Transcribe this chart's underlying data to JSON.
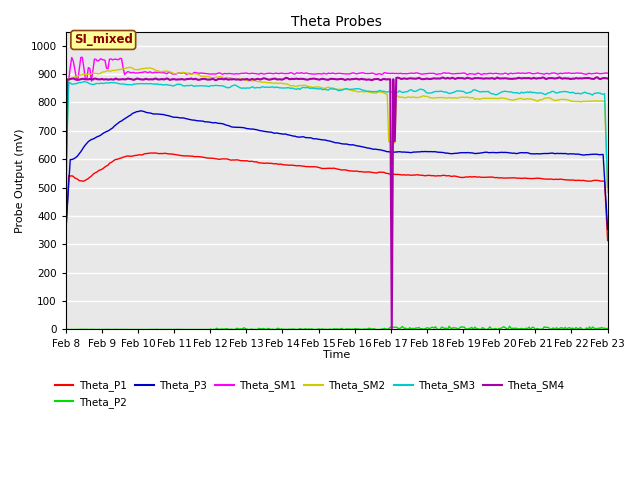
{
  "title": "Theta Probes",
  "xlabel": "Time",
  "ylabel": "Probe Output (mV)",
  "ylim": [
    0,
    1050
  ],
  "background_color": "#e8e8e8",
  "grid_color": "white",
  "annotation_text": "SI_mixed",
  "annotation_color": "#8B0000",
  "annotation_bg": "#ffff99",
  "annotation_border": "#8B4513",
  "x_tick_labels": [
    "Feb 8",
    "Feb 9",
    "Feb 10",
    "Feb 11",
    "Feb 12",
    "Feb 13",
    "Feb 14",
    "Feb 15",
    "Feb 16",
    "Feb 17",
    "Feb 18",
    "Feb 19",
    "Feb 20",
    "Feb 21",
    "Feb 22",
    "Feb 23"
  ],
  "yticks": [
    0,
    100,
    200,
    300,
    400,
    500,
    600,
    700,
    800,
    900,
    1000
  ],
  "legend_entries": [
    {
      "label": "Theta_P1",
      "color": "#ff0000"
    },
    {
      "label": "Theta_P2",
      "color": "#00dd00"
    },
    {
      "label": "Theta_P3",
      "color": "#0000cc"
    },
    {
      "label": "Theta_SM1",
      "color": "#ff00ff"
    },
    {
      "label": "Theta_SM2",
      "color": "#cccc00"
    },
    {
      "label": "Theta_SM3",
      "color": "#00cccc"
    },
    {
      "label": "Theta_SM4",
      "color": "#aa00aa"
    }
  ]
}
